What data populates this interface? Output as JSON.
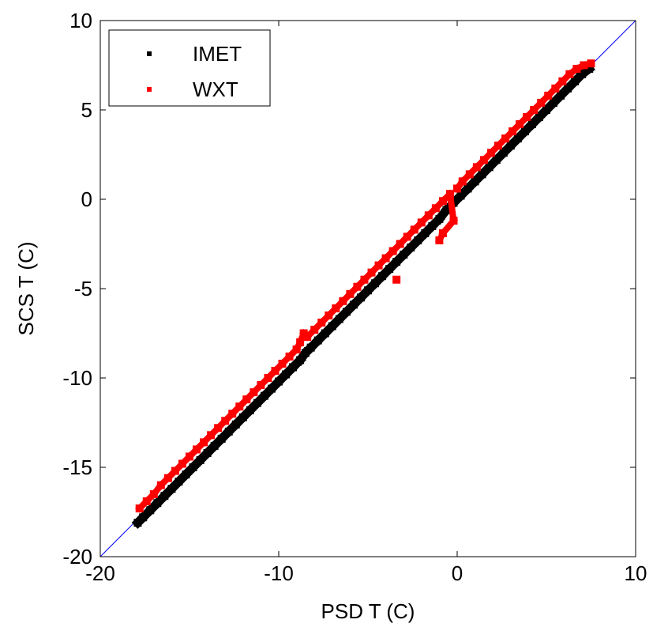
{
  "chart_data": {
    "type": "scatter",
    "title": "",
    "xlabel": "PSD T (C)",
    "ylabel": "SCS T (C)",
    "xlim": [
      -20,
      10
    ],
    "ylim": [
      -20,
      10
    ],
    "xticks": [
      -20,
      -10,
      0,
      10
    ],
    "yticks": [
      -20,
      -15,
      -10,
      -5,
      0,
      5,
      10
    ],
    "xtick_labels": [
      "-20",
      "-10",
      "0",
      "10"
    ],
    "ytick_labels": [
      "-20",
      "-15",
      "-10",
      "-5",
      "0",
      "5",
      "10"
    ],
    "grid": false,
    "legend_position": "top-left",
    "reference_line": {
      "x": [
        -20,
        10
      ],
      "y": [
        -20,
        10
      ],
      "color": "#0000ff"
    },
    "series": [
      {
        "name": "IMET",
        "color": "#000000",
        "x": [
          -17.9,
          -17.6,
          -17.2,
          -16.8,
          -16.4,
          -16.0,
          -15.6,
          -15.2,
          -14.8,
          -14.4,
          -14.0,
          -13.6,
          -13.2,
          -12.8,
          -12.4,
          -12.0,
          -11.6,
          -11.2,
          -10.8,
          -10.4,
          -10.0,
          -9.6,
          -9.2,
          -8.8,
          -8.5,
          -8.2,
          -7.8,
          -7.4,
          -7.0,
          -6.6,
          -6.2,
          -5.8,
          -5.4,
          -5.0,
          -4.6,
          -4.2,
          -3.8,
          -3.4,
          -3.0,
          -2.6,
          -2.2,
          -1.8,
          -1.4,
          -1.0,
          -0.6,
          -0.2,
          0.2,
          0.6,
          1.0,
          1.4,
          1.8,
          2.2,
          2.6,
          3.0,
          3.4,
          3.8,
          4.2,
          4.6,
          5.0,
          5.4,
          5.8,
          6.2,
          6.6,
          7.0,
          7.4
        ],
        "y": [
          -18.1,
          -17.8,
          -17.4,
          -17.0,
          -16.6,
          -16.2,
          -15.8,
          -15.4,
          -15.0,
          -14.6,
          -14.2,
          -13.8,
          -13.4,
          -13.0,
          -12.6,
          -12.2,
          -11.8,
          -11.4,
          -11.0,
          -10.6,
          -10.2,
          -9.8,
          -9.4,
          -9.0,
          -8.6,
          -8.3,
          -7.9,
          -7.5,
          -7.1,
          -6.7,
          -6.3,
          -5.9,
          -5.5,
          -5.1,
          -4.7,
          -4.3,
          -3.9,
          -3.5,
          -3.1,
          -2.7,
          -2.3,
          -1.9,
          -1.5,
          -1.1,
          -0.6,
          -0.2,
          0.2,
          0.6,
          1.0,
          1.4,
          1.8,
          2.2,
          2.6,
          3.0,
          3.4,
          3.8,
          4.2,
          4.6,
          5.0,
          5.4,
          5.8,
          6.2,
          6.6,
          7.0,
          7.3
        ]
      },
      {
        "name": "WXT",
        "color": "#ff0000",
        "x": [
          -17.8,
          -17.4,
          -17.0,
          -16.6,
          -16.2,
          -15.8,
          -15.4,
          -15.0,
          -14.6,
          -14.2,
          -13.8,
          -13.4,
          -13.0,
          -12.6,
          -12.2,
          -11.8,
          -11.4,
          -11.0,
          -10.6,
          -10.2,
          -9.8,
          -9.4,
          -9.0,
          -8.8,
          -8.6,
          -8.4,
          -8.0,
          -7.6,
          -7.2,
          -6.8,
          -6.4,
          -6.0,
          -5.6,
          -5.2,
          -4.8,
          -4.4,
          -4.0,
          -3.6,
          -3.2,
          -2.8,
          -2.4,
          -2.0,
          -1.6,
          -1.2,
          -0.8,
          -0.4,
          -0.2,
          -0.8,
          -1.0,
          0.0,
          0.3,
          0.7,
          1.1,
          1.5,
          1.9,
          2.3,
          2.7,
          3.1,
          3.5,
          3.9,
          4.3,
          4.7,
          5.1,
          5.5,
          5.9,
          6.3,
          6.7,
          7.1,
          7.5,
          -3.4
        ],
        "y": [
          -17.3,
          -16.9,
          -16.5,
          -16.0,
          -15.6,
          -15.2,
          -14.8,
          -14.4,
          -14.0,
          -13.6,
          -13.2,
          -12.8,
          -12.4,
          -12.0,
          -11.6,
          -11.2,
          -10.8,
          -10.4,
          -10.0,
          -9.6,
          -9.2,
          -8.8,
          -8.4,
          -8.0,
          -7.5,
          -7.7,
          -7.3,
          -6.9,
          -6.5,
          -6.1,
          -5.7,
          -5.3,
          -4.9,
          -4.5,
          -4.1,
          -3.7,
          -3.3,
          -2.9,
          -2.5,
          -2.1,
          -1.7,
          -1.3,
          -0.9,
          -0.5,
          -0.1,
          0.3,
          -1.2,
          -1.9,
          -2.3,
          0.6,
          1.0,
          1.4,
          1.8,
          2.2,
          2.6,
          3.0,
          3.4,
          3.8,
          4.2,
          4.6,
          5.0,
          5.4,
          5.8,
          6.2,
          6.6,
          7.0,
          7.3,
          7.5,
          7.6,
          -4.5
        ]
      }
    ]
  }
}
